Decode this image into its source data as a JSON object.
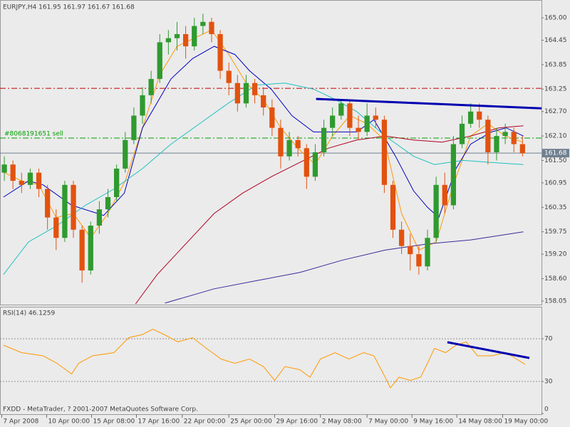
{
  "chart_data": [
    {
      "type": "candlestick",
      "title": "EURJPY,H4  161.95 161.97 161.67 161.68",
      "open": [
        161.2,
        161.4,
        161.0,
        160.9,
        161.2,
        160.8,
        160.1,
        159.6,
        160.9,
        159.8,
        158.8,
        159.9,
        160.3,
        160.6,
        161.3,
        162.0,
        162.6,
        163.1,
        163.5,
        164.4,
        164.5,
        164.6,
        164.3,
        164.8,
        164.9,
        164.6,
        163.7,
        163.4,
        162.9,
        163.4,
        163.1,
        162.8,
        162.3,
        161.6,
        162.0,
        161.8,
        161.1,
        161.7,
        162.3,
        162.6,
        162.9,
        162.3,
        162.2,
        162.6,
        162.5,
        160.9,
        159.8,
        159.4,
        159.2,
        158.9,
        159.6,
        160.9,
        160.4,
        161.9,
        162.4,
        162.7,
        162.5,
        161.7,
        162.1,
        162.2,
        161.9
      ],
      "high": [
        161.6,
        161.5,
        161.2,
        161.3,
        161.3,
        160.9,
        160.3,
        161.0,
        161.0,
        159.9,
        160.0,
        160.5,
        160.8,
        161.4,
        162.2,
        162.8,
        163.3,
        163.7,
        164.6,
        164.7,
        164.9,
        164.8,
        165.0,
        165.1,
        165.0,
        164.7,
        163.9,
        163.6,
        163.6,
        163.5,
        163.3,
        163.0,
        162.5,
        162.2,
        162.1,
        161.9,
        161.9,
        162.5,
        162.8,
        163.0,
        163.0,
        162.6,
        162.9,
        162.8,
        162.6,
        161.0,
        160.0,
        159.7,
        159.4,
        159.8,
        161.1,
        161.2,
        162.1,
        162.6,
        162.9,
        162.9,
        162.6,
        162.3,
        162.4,
        162.3,
        162.1
      ],
      "low": [
        161.0,
        160.8,
        160.7,
        160.8,
        160.6,
        159.8,
        159.3,
        159.5,
        159.6,
        158.5,
        158.7,
        159.7,
        160.1,
        160.5,
        161.2,
        161.9,
        162.4,
        162.9,
        163.4,
        164.1,
        164.2,
        164.0,
        164.2,
        164.6,
        164.4,
        163.5,
        163.1,
        162.7,
        162.8,
        162.9,
        162.6,
        162.1,
        161.3,
        161.5,
        161.6,
        160.8,
        161.0,
        161.6,
        162.1,
        162.5,
        162.1,
        162.0,
        162.1,
        162.3,
        160.7,
        159.6,
        159.2,
        158.8,
        158.7,
        158.8,
        159.5,
        160.2,
        160.3,
        161.8,
        162.3,
        162.3,
        161.4,
        161.5,
        161.9,
        161.7,
        161.6
      ],
      "close": [
        161.4,
        161.0,
        160.9,
        161.2,
        160.8,
        160.1,
        159.6,
        160.9,
        159.8,
        158.8,
        159.9,
        160.3,
        160.6,
        161.3,
        162.0,
        162.6,
        163.1,
        163.5,
        164.4,
        164.5,
        164.6,
        164.3,
        164.8,
        164.9,
        164.6,
        163.7,
        163.4,
        162.9,
        163.4,
        163.1,
        162.8,
        162.3,
        161.6,
        162.0,
        161.8,
        161.1,
        161.7,
        162.3,
        162.6,
        162.9,
        162.3,
        162.2,
        162.6,
        162.5,
        160.9,
        159.8,
        159.4,
        159.2,
        158.9,
        159.6,
        160.9,
        160.4,
        161.9,
        162.4,
        162.7,
        162.5,
        161.7,
        162.1,
        162.2,
        161.9,
        161.68
      ],
      "color_up": "#2f9a2f",
      "color_down": "#e2520f",
      "series": [
        {
          "color": "#ff9900",
          "x": [
            0,
            2,
            4,
            6,
            8,
            10,
            12,
            14,
            16,
            18,
            20,
            22,
            24,
            26,
            28,
            30,
            32,
            34,
            36,
            38,
            40,
            42,
            44,
            46,
            48,
            50,
            52,
            54,
            56,
            58,
            60
          ],
          "values": [
            161.2,
            161.0,
            160.9,
            160.1,
            160.2,
            159.6,
            160.2,
            161.0,
            162.3,
            163.6,
            164.3,
            164.5,
            164.7,
            164.1,
            163.4,
            163.0,
            162.3,
            161.8,
            161.4,
            162.1,
            162.6,
            162.4,
            162.0,
            160.2,
            159.3,
            159.5,
            160.9,
            162.1,
            162.4,
            162.1,
            161.95
          ]
        },
        {
          "color": "#0000c0",
          "x": [
            -0.1,
            2.8,
            4.5,
            7.8,
            11.5,
            13.9,
            16,
            19.3,
            21.8,
            24.3,
            26.7,
            28.4,
            30.9,
            33.3,
            35.8,
            38.3,
            40.8,
            42.8,
            45.3,
            47.4,
            49,
            50.3,
            52.3,
            54,
            56.4,
            58.1,
            60.1
          ],
          "values": [
            160.6,
            161.0,
            160.9,
            160.4,
            160.15,
            160.7,
            162.3,
            163.5,
            164.0,
            164.3,
            164.1,
            163.7,
            163.25,
            162.6,
            162.2,
            162.2,
            162.2,
            162.5,
            161.6,
            160.75,
            160.35,
            160.1,
            161.3,
            161.9,
            162.2,
            162.3,
            162.1
          ]
        },
        {
          "color": "#20c0c0",
          "x": [
            -0.1,
            2.8,
            6.1,
            9.4,
            12.7,
            16,
            19.3,
            22.6,
            25.9,
            29.2,
            32.5,
            35.8,
            38.3,
            40.8,
            44.1,
            47.4,
            49.8,
            53.1,
            56.4,
            60.1
          ],
          "values": [
            158.7,
            159.5,
            159.9,
            160.4,
            160.8,
            161.3,
            161.9,
            162.4,
            162.9,
            163.35,
            163.4,
            163.25,
            163.0,
            162.7,
            162.1,
            161.6,
            161.4,
            161.5,
            161.45,
            161.4
          ]
        },
        {
          "color": "#b00020",
          "x": [
            15.2,
            17.7,
            21,
            24.3,
            27.6,
            30.9,
            34.2,
            37.5,
            40.8,
            44.1,
            47.4,
            50.7,
            54,
            57.3,
            60.1
          ],
          "values": [
            157.98,
            158.7,
            159.45,
            160.2,
            160.7,
            161.1,
            161.45,
            161.8,
            162.0,
            162.1,
            162.0,
            161.95,
            162.1,
            162.3,
            162.35
          ]
        },
        {
          "color": "#3a2a9a",
          "x": [
            18.6,
            24.3,
            29.2,
            34.2,
            39.1,
            44.1,
            49,
            54,
            60.1
          ],
          "values": [
            158.0,
            158.35,
            158.55,
            158.75,
            159.05,
            159.3,
            159.45,
            159.55,
            159.75
          ]
        }
      ],
      "trendlines": [
        {
          "color": "#0000b0",
          "x": [
            36.1,
            64.3
          ],
          "values": [
            163.01,
            162.76
          ]
        }
      ],
      "hlines": [
        {
          "value": 163.27,
          "color": "#c00000",
          "style": "dashdot"
        },
        {
          "value": 162.05,
          "color": "#00a000",
          "style": "dashdot",
          "label": "#8068191651 sell"
        },
        {
          "value": 161.68,
          "color": "#708090",
          "style": "solid"
        }
      ],
      "xlim": [
        -0.5,
        62.2
      ],
      "ylim": [
        157.98,
        165.35
      ],
      "yticks": [
        {
          "value": 165.0,
          "label": "165.00"
        },
        {
          "value": 164.45,
          "label": "164.45"
        },
        {
          "value": 163.85,
          "label": "163.85"
        },
        {
          "value": 163.25,
          "label": "163.25"
        },
        {
          "value": 162.7,
          "label": "162.70"
        },
        {
          "value": 162.1,
          "label": "162.10"
        },
        {
          "value": 161.5,
          "label": "161.50"
        },
        {
          "value": 160.95,
          "label": "160.95"
        },
        {
          "value": 160.35,
          "label": "160.35"
        },
        {
          "value": 159.75,
          "label": "159.75"
        },
        {
          "value": 159.2,
          "label": "159.20"
        },
        {
          "value": 158.6,
          "label": "158.60"
        },
        {
          "value": 158.05,
          "label": "158.05"
        }
      ],
      "xticks": [
        {
          "value": -0.3,
          "label": "7 Apr 2008"
        },
        {
          "value": 4.9,
          "label": "10 Apr 00:00"
        },
        {
          "value": 10.1,
          "label": "15 Apr 08:00"
        },
        {
          "value": 15.3,
          "label": "17 Apr 16:00"
        },
        {
          "value": 20.6,
          "label": "22 Apr 00:00"
        },
        {
          "value": 26,
          "label": "25 Apr 00:00"
        },
        {
          "value": 31.3,
          "label": "29 Apr 16:00"
        },
        {
          "value": 36.6,
          "label": "2 May 08:00"
        },
        {
          "value": 42,
          "label": "7 May 00:00"
        },
        {
          "value": 47.2,
          "label": "9 May 16:00"
        },
        {
          "value": 52.4,
          "label": "14 May 08:00"
        },
        {
          "value": 57.7,
          "label": "19 May 00:00"
        }
      ]
    },
    {
      "type": "line",
      "title": "RSI(14) 46.1259",
      "color": "#ff9900",
      "x": [
        -0.1,
        2,
        4.5,
        6.1,
        7.8,
        8.6,
        10.2,
        12.7,
        14.4,
        16,
        17.2,
        18.5,
        20.1,
        21.8,
        23.4,
        25.1,
        26.7,
        28.4,
        30,
        31.3,
        32.5,
        34.2,
        35.4,
        36.6,
        38.3,
        39.9,
        41.6,
        42.8,
        44.1,
        44.7,
        45.7,
        47,
        48.2,
        49,
        49.8,
        51.1,
        52.3,
        53.5,
        54.8,
        56.4,
        58.1,
        59.3,
        60.3
      ],
      "values": [
        64,
        57,
        54,
        47,
        37,
        47,
        54,
        57,
        71,
        74,
        79,
        74,
        67,
        71,
        61,
        51,
        47,
        51,
        44,
        31,
        44,
        41,
        34,
        51,
        57,
        51,
        57,
        54,
        34,
        24,
        34,
        31,
        34,
        47,
        61,
        57,
        64,
        67,
        54,
        54,
        57,
        51,
        46.1
      ],
      "levels": [
        70,
        30
      ],
      "trendlines": [
        {
          "color": "#0000b0",
          "x": [
            51.3,
            60.8
          ],
          "values": [
            66.7,
            52
          ]
        }
      ],
      "xlim": [
        -0.5,
        62.2
      ],
      "ylim": [
        0,
        100
      ],
      "yticks": [
        70,
        30,
        0
      ],
      "footer": "FXDD - MetaTrader, ? 2001-2007 MetaQuotes Software Corp."
    }
  ]
}
